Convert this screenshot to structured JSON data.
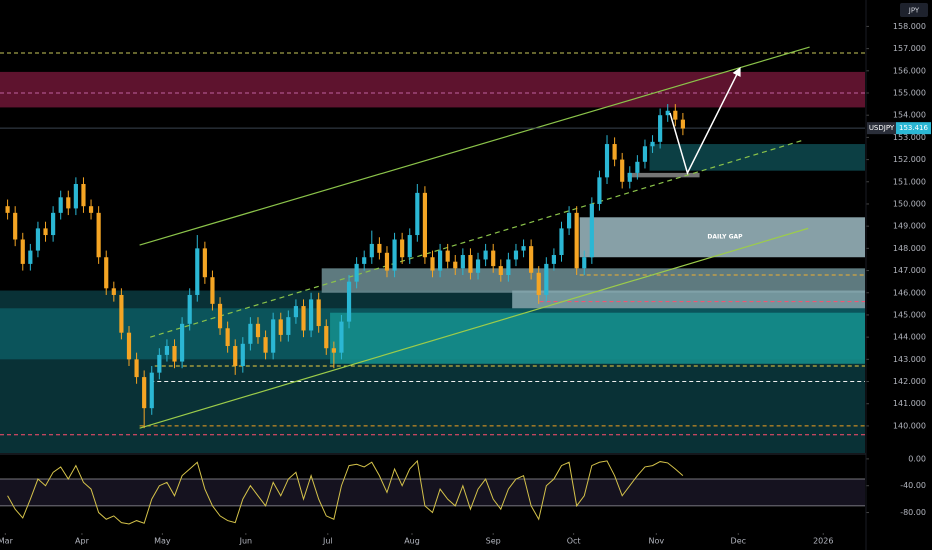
{
  "chart_data": {
    "type": "candlestick",
    "symbol": "USDJPY",
    "currency": "JPY",
    "annotation": "DAILY GAP",
    "last_price": 153.416,
    "up_color": "#2bb7d4",
    "down_color": "#f5a524",
    "xlim": [
      -1,
      113
    ],
    "xticks": [
      {
        "value": -0.3,
        "label": "Mar"
      },
      {
        "value": 9.8,
        "label": "Apr"
      },
      {
        "value": 20.4,
        "label": "May"
      },
      {
        "value": 31.4,
        "label": "Jun"
      },
      {
        "value": 42.2,
        "label": "Jul"
      },
      {
        "value": 53.3,
        "label": "Aug"
      },
      {
        "value": 64.0,
        "label": "Sep"
      },
      {
        "value": 74.6,
        "label": "Oct"
      },
      {
        "value": 85.5,
        "label": "Nov"
      },
      {
        "value": 96.3,
        "label": "Dec"
      },
      {
        "value": 107.5,
        "label": "2026"
      }
    ],
    "ylim": [
      138.78,
      159.19
    ],
    "yticks": [
      {
        "value": 140,
        "label": "140.000"
      },
      {
        "value": 141,
        "label": "141.000"
      },
      {
        "value": 142,
        "label": "142.000"
      },
      {
        "value": 143,
        "label": "143.000"
      },
      {
        "value": 144,
        "label": "144.000"
      },
      {
        "value": 145,
        "label": "145.000"
      },
      {
        "value": 146,
        "label": "146.000"
      },
      {
        "value": 147,
        "label": "147.000"
      },
      {
        "value": 148,
        "label": "148.000"
      },
      {
        "value": 149,
        "label": "149.000"
      },
      {
        "value": 150,
        "label": "150.000"
      },
      {
        "value": 151,
        "label": "151.000"
      },
      {
        "value": 152,
        "label": "152.000"
      },
      {
        "value": 153,
        "label": "153.000"
      },
      {
        "value": 154,
        "label": "154.000"
      },
      {
        "value": 155,
        "label": "155.000"
      },
      {
        "value": 156,
        "label": "156.000"
      },
      {
        "value": 157,
        "label": "157.000"
      },
      {
        "value": 158,
        "label": "158.000"
      }
    ],
    "open": [
      149.9,
      149.6,
      148.4,
      147.3,
      147.9,
      148.9,
      148.6,
      149.6,
      150.3,
      149.8,
      150.9,
      149.9,
      149.6,
      147.6,
      146.2,
      145.9,
      144.2,
      143.0,
      142.2,
      140.8,
      142.4,
      143.2,
      143.6,
      142.9,
      144.6,
      145.9,
      148.0,
      146.7,
      145.5,
      144.4,
      143.6,
      142.7,
      143.7,
      144.6,
      144.0,
      143.3,
      144.8,
      144.1,
      144.9,
      145.4,
      144.3,
      145.7,
      144.5,
      143.5,
      143.3,
      144.7,
      146.5,
      147.3,
      147.6,
      148.2,
      147.8,
      147.0,
      148.4,
      147.6,
      148.6,
      150.5,
      147.6,
      147.0,
      147.9,
      147.4,
      147.1,
      147.7,
      146.9,
      147.5,
      147.9,
      147.2,
      146.8,
      147.5,
      147.9,
      148.1,
      146.9,
      145.9,
      147.3,
      147.7,
      148.9,
      149.6,
      147.1,
      147.6,
      150.0,
      151.2,
      152.7,
      152.0,
      151.0,
      151.4,
      151.9,
      152.6,
      152.8,
      154.0,
      154.2,
      153.8
    ],
    "high": [
      150.2,
      149.9,
      148.7,
      148.2,
      149.2,
      149.2,
      149.9,
      150.6,
      150.6,
      151.2,
      151.2,
      150.2,
      149.9,
      147.9,
      146.5,
      146.2,
      144.5,
      143.3,
      142.5,
      142.7,
      143.5,
      143.9,
      143.9,
      144.9,
      146.2,
      148.6,
      148.3,
      147.0,
      145.8,
      144.7,
      143.9,
      144.0,
      144.9,
      144.9,
      144.3,
      145.1,
      145.1,
      145.2,
      145.7,
      145.7,
      146.0,
      146.0,
      144.8,
      143.8,
      145.0,
      146.8,
      147.6,
      147.9,
      148.8,
      148.5,
      148.1,
      148.7,
      148.7,
      148.9,
      150.9,
      150.8,
      147.9,
      148.2,
      148.2,
      147.7,
      148.0,
      148.0,
      147.8,
      148.2,
      148.2,
      147.5,
      147.8,
      148.2,
      148.4,
      148.4,
      147.2,
      147.6,
      148.0,
      149.2,
      149.9,
      149.9,
      147.9,
      150.3,
      151.5,
      153.1,
      153.0,
      152.3,
      151.7,
      152.2,
      152.9,
      153.1,
      154.3,
      154.5,
      154.5,
      154.1
    ],
    "low": [
      149.3,
      148.1,
      147.0,
      147.0,
      147.6,
      148.3,
      148.3,
      149.3,
      149.5,
      149.5,
      149.6,
      149.3,
      147.3,
      145.9,
      145.6,
      143.9,
      142.7,
      141.9,
      139.9,
      140.5,
      142.1,
      142.9,
      142.6,
      142.6,
      144.3,
      145.6,
      146.4,
      145.2,
      144.1,
      143.3,
      142.3,
      142.4,
      143.4,
      143.7,
      143.0,
      143.0,
      143.8,
      143.8,
      144.6,
      144.0,
      144.0,
      144.2,
      143.2,
      142.6,
      143.0,
      144.4,
      146.2,
      147.0,
      147.3,
      147.5,
      146.7,
      146.7,
      147.3,
      147.3,
      148.3,
      147.3,
      146.7,
      146.7,
      147.1,
      146.8,
      146.8,
      146.6,
      146.6,
      147.2,
      146.9,
      146.5,
      146.5,
      147.2,
      147.6,
      146.6,
      145.5,
      145.6,
      147.0,
      147.4,
      148.6,
      146.8,
      146.8,
      147.3,
      149.7,
      150.9,
      151.7,
      150.7,
      150.7,
      151.1,
      151.6,
      152.3,
      152.5,
      153.7,
      153.5,
      153.1
    ],
    "close": [
      149.6,
      148.4,
      147.3,
      147.9,
      148.9,
      148.6,
      149.6,
      150.3,
      149.8,
      150.9,
      149.9,
      149.6,
      147.6,
      146.2,
      145.9,
      144.2,
      143.0,
      142.2,
      140.8,
      142.4,
      143.2,
      143.6,
      142.9,
      144.6,
      145.9,
      148.0,
      146.7,
      145.5,
      144.4,
      143.6,
      142.7,
      143.7,
      144.6,
      144.0,
      143.3,
      144.8,
      144.1,
      144.9,
      145.4,
      144.3,
      145.7,
      144.5,
      143.5,
      143.3,
      144.7,
      146.5,
      147.3,
      147.6,
      148.2,
      147.8,
      147.0,
      148.4,
      147.6,
      148.6,
      150.5,
      147.6,
      147.0,
      147.9,
      147.4,
      147.1,
      147.7,
      146.9,
      147.5,
      147.9,
      147.2,
      146.8,
      147.5,
      147.9,
      148.1,
      146.9,
      145.9,
      147.3,
      147.7,
      148.9,
      149.6,
      147.1,
      147.6,
      150.0,
      151.2,
      152.7,
      152.0,
      151.0,
      151.4,
      151.9,
      152.6,
      152.8,
      154.0,
      154.2,
      153.8,
      153.4
    ],
    "zones": [
      {
        "x0": -1,
        "x1": 113,
        "top": 155.95,
        "bottom": 154.35,
        "color": "#6e1636"
      },
      {
        "x0": -1,
        "x1": 113,
        "top": 146.1,
        "bottom": 138.78,
        "color": "#0a3a40"
      },
      {
        "x0": -1,
        "x1": 113,
        "top": 145.3,
        "bottom": 143.0,
        "color": "#0c5a62"
      },
      {
        "x0": 42.5,
        "x1": 113,
        "top": 145.1,
        "bottom": 142.8,
        "color": "#15918e"
      },
      {
        "x0": 41.4,
        "x1": 113,
        "top": 147.1,
        "bottom": 146.0,
        "color": "#6f8f95"
      },
      {
        "x0": 66.5,
        "x1": 113,
        "top": 146.1,
        "bottom": 145.3,
        "color": "#86a7ae"
      },
      {
        "x0": 75.4,
        "x1": 113,
        "top": 149.4,
        "bottom": 147.6,
        "color": "#9fbcc4"
      },
      {
        "x0": 84.6,
        "x1": 113,
        "top": 152.7,
        "bottom": 151.5,
        "color": "#0e4a50"
      },
      {
        "x0": 81.7,
        "x1": 91.2,
        "top": 151.4,
        "bottom": 151.2,
        "color": "#8a8a8a"
      }
    ],
    "levels": [
      {
        "price": 156.8,
        "x0": -1,
        "x1": 113,
        "color": "#c8c85a"
      },
      {
        "price": 155.0,
        "x0": -1,
        "x1": 113,
        "color": "#c060a0"
      },
      {
        "price": 146.8,
        "x0": 75.4,
        "x1": 113,
        "color": "#f0b030"
      },
      {
        "price": 145.6,
        "x0": 70.1,
        "x1": 113,
        "color": "#ff4d6d"
      },
      {
        "price": 142.7,
        "x0": 19.4,
        "x1": 113,
        "color": "#f0d040"
      },
      {
        "price": 142.0,
        "x0": 18.8,
        "x1": 113,
        "color": "#f0f0f0"
      },
      {
        "price": 140.0,
        "x0": 17.4,
        "x1": 113,
        "color": "#f0a020"
      },
      {
        "price": 139.6,
        "x0": -1,
        "x1": 113,
        "color": "#ff4d6d"
      }
    ],
    "trendlines": [
      {
        "x": [
          17.4,
          105.7
        ],
        "y": [
          148.15,
          157.07
        ],
        "color": "#8bc34a",
        "dashed": false
      },
      {
        "x": [
          17.4,
          105.5
        ],
        "y": [
          139.9,
          148.9
        ],
        "color": "#9ccc4a",
        "dashed": false
      },
      {
        "x": [
          18.8,
          105.1
        ],
        "y": [
          144.0,
          152.9
        ],
        "color": "#8bc34a",
        "dashed": true
      }
    ],
    "arrow": {
      "x": [
        87.3,
        89.6,
        96.5
      ],
      "y": [
        154.1,
        151.4,
        156.1
      ],
      "color": "#ffffff"
    },
    "oscillator": {
      "color": "#d4c24a",
      "ylim": [
        -109,
        5.8
      ],
      "yticks": [
        {
          "value": 0,
          "label": "0.00"
        },
        {
          "value": -40,
          "label": "-40.00"
        },
        {
          "value": -80,
          "label": "-80.00"
        }
      ],
      "levels": [
        -30,
        -70
      ],
      "values": [
        -55,
        -75,
        -88,
        -60,
        -30,
        -40,
        -20,
        -12,
        -30,
        -10,
        -35,
        -45,
        -80,
        -90,
        -85,
        -95,
        -97,
        -92,
        -96,
        -60,
        -40,
        -35,
        -55,
        -25,
        -15,
        -5,
        -45,
        -70,
        -85,
        -92,
        -95,
        -60,
        -40,
        -55,
        -70,
        -35,
        -55,
        -30,
        -20,
        -60,
        -25,
        -60,
        -85,
        -90,
        -40,
        -10,
        -8,
        -12,
        -5,
        -25,
        -50,
        -15,
        -40,
        -15,
        -3,
        -70,
        -80,
        -45,
        -60,
        -70,
        -40,
        -75,
        -45,
        -30,
        -60,
        -75,
        -45,
        -30,
        -25,
        -70,
        -90,
        -40,
        -30,
        -10,
        -5,
        -70,
        -55,
        -10,
        -5,
        -3,
        -25,
        -55,
        -40,
        -25,
        -12,
        -10,
        -4,
        -6,
        -15,
        -25
      ]
    }
  }
}
